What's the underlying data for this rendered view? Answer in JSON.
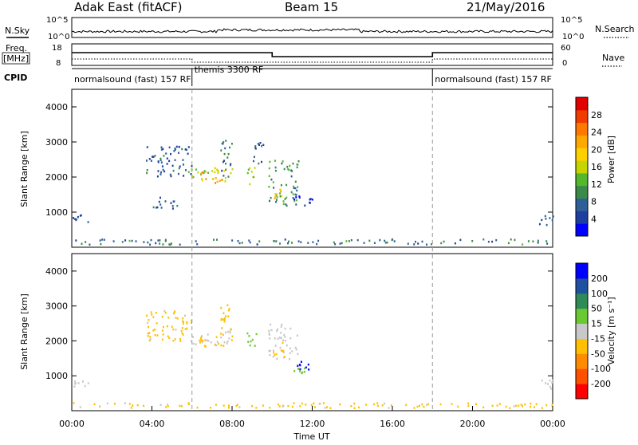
{
  "header": {
    "station": "Adak East (fitACF)",
    "beam": "Beam 15",
    "date": "21/May/2016"
  },
  "top_panels": {
    "nsky_label": "N.Sky",
    "nsearch_label": "N.Search",
    "nsky_ticks": [
      "10^5",
      "10^0"
    ],
    "nsearch_ticks": [
      "10^5",
      "10^0"
    ],
    "freq_label_1": "Freq.",
    "freq_label_2": "[MHz]",
    "freq_ticks": [
      "18",
      "8"
    ],
    "nave_label": "Nave",
    "nave_ticks": [
      "60",
      "0"
    ],
    "cpid_label": "CPID",
    "cpid_segments": [
      {
        "label": "normalsound (fast) 157 RF",
        "start_h": 0,
        "end_h": 6
      },
      {
        "label": "themis 3300 RF",
        "start_h": 6,
        "end_h": 18
      },
      {
        "label": "normalsound (fast) 157 RF",
        "start_h": 18,
        "end_h": 24
      }
    ]
  },
  "colors": {
    "power": [
      "#0000ff",
      "#1e3fa0",
      "#2f5f99",
      "#3b8a4a",
      "#55b82c",
      "#c8d400",
      "#ffd000",
      "#ffa800",
      "#ff7800",
      "#f03c00",
      "#e00000"
    ],
    "velocity": [
      "#ff0000",
      "#ff5000",
      "#ff8c00",
      "#ffc000",
      "#c8c8c8",
      "#6ac832",
      "#2e8b57",
      "#2050a0",
      "#0000ff"
    ]
  },
  "power_colorbar": {
    "title": "Power [dB]",
    "ticks": [
      "28",
      "24",
      "20",
      "16",
      "12",
      "8",
      "4"
    ]
  },
  "velocity_colorbar": {
    "title": "Velocity [m s⁻¹]",
    "ticks": [
      "200",
      "100",
      "50",
      "15",
      "-15",
      "-50",
      "-100",
      "-200"
    ]
  },
  "xaxis": {
    "title": "Time UT",
    "ticks": [
      "00:00",
      "04:00",
      "08:00",
      "12:00",
      "16:00",
      "20:00",
      "00:00"
    ]
  },
  "chart_data": [
    {
      "type": "heatmap",
      "title": "Power",
      "xlabel": "Time UT",
      "ylabel": "Slant Range [km]",
      "xlim": [
        0,
        24
      ],
      "ylim": [
        0,
        4500
      ],
      "yticks": [
        1000,
        2000,
        3000,
        4000
      ],
      "zlabel": "Power [dB]",
      "zlim": [
        0,
        30
      ],
      "regions": [
        {
          "t0": 0.0,
          "t1": 0.8,
          "r0": 700,
          "r1": 950,
          "value": 6
        },
        {
          "t0": 3.7,
          "t1": 6.0,
          "r0": 2000,
          "r1": 2900,
          "value": 6
        },
        {
          "t0": 5.8,
          "t1": 8.0,
          "r0": 1900,
          "r1": 2300,
          "value": 14
        },
        {
          "t0": 6.3,
          "t1": 7.6,
          "r0": 1850,
          "r1": 2200,
          "value": 20
        },
        {
          "t0": 7.4,
          "t1": 8.0,
          "r0": 2000,
          "r1": 3200,
          "value": 8
        },
        {
          "t0": 4.0,
          "t1": 5.3,
          "r0": 1100,
          "r1": 1500,
          "value": 6
        },
        {
          "t0": 8.7,
          "t1": 9.2,
          "r0": 1800,
          "r1": 2300,
          "value": 14
        },
        {
          "t0": 9.0,
          "t1": 9.6,
          "r0": 2400,
          "r1": 3100,
          "value": 6
        },
        {
          "t0": 9.8,
          "t1": 11.3,
          "r0": 1200,
          "r1": 2500,
          "value": 10
        },
        {
          "t0": 10.0,
          "t1": 10.5,
          "r0": 1400,
          "r1": 1700,
          "value": 18
        },
        {
          "t0": 11.0,
          "t1": 12.0,
          "r0": 1100,
          "r1": 1500,
          "value": 4
        },
        {
          "t0": 0.0,
          "t1": 24.0,
          "r0": 100,
          "r1": 250,
          "value": 8
        },
        {
          "t0": 23.2,
          "t1": 24.0,
          "r0": 650,
          "r1": 950,
          "value": 6
        }
      ]
    },
    {
      "type": "heatmap",
      "title": "Velocity",
      "xlabel": "Time UT",
      "ylabel": "Slant Range [km]",
      "xlim": [
        0,
        24
      ],
      "ylim": [
        0,
        4500
      ],
      "yticks": [
        1000,
        2000,
        3000,
        4000
      ],
      "zlabel": "Velocity [m s⁻¹]",
      "zlim": [
        -250,
        250
      ],
      "regions": [
        {
          "t0": 0.0,
          "t1": 0.8,
          "r0": 700,
          "r1": 950,
          "value": 0
        },
        {
          "t0": 3.7,
          "t1": 6.0,
          "r0": 2000,
          "r1": 2900,
          "value": -30
        },
        {
          "t0": 5.8,
          "t1": 8.0,
          "r0": 1900,
          "r1": 2300,
          "value": 0
        },
        {
          "t0": 6.3,
          "t1": 7.6,
          "r0": 1850,
          "r1": 2200,
          "value": -40
        },
        {
          "t0": 7.4,
          "t1": 8.0,
          "r0": 2000,
          "r1": 3200,
          "value": -60
        },
        {
          "t0": 8.7,
          "t1": 9.2,
          "r0": 1800,
          "r1": 2300,
          "value": 30
        },
        {
          "t0": 9.8,
          "t1": 11.3,
          "r0": 1500,
          "r1": 2500,
          "value": 0
        },
        {
          "t0": 10.0,
          "t1": 10.6,
          "r0": 1500,
          "r1": 2000,
          "value": -40
        },
        {
          "t0": 11.0,
          "t1": 12.0,
          "r0": 1200,
          "r1": 1500,
          "value": 200
        },
        {
          "t0": 10.8,
          "t1": 11.6,
          "r0": 1000,
          "r1": 1250,
          "value": 40
        },
        {
          "t0": 0.0,
          "t1": 24.0,
          "r0": 100,
          "r1": 250,
          "value": -30
        },
        {
          "t0": 23.2,
          "t1": 24.0,
          "r0": 650,
          "r1": 950,
          "value": 0
        }
      ]
    }
  ]
}
